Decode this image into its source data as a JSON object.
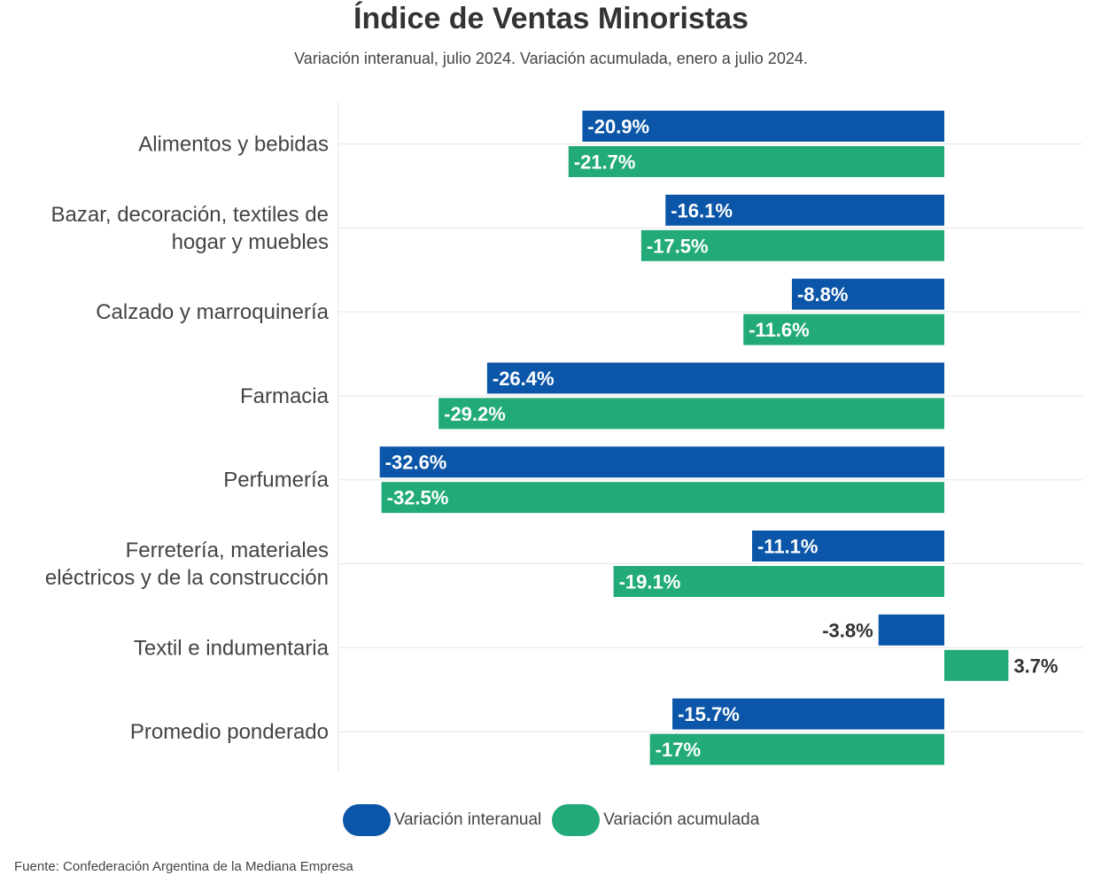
{
  "chart_data": {
    "type": "bar",
    "orientation": "horizontal",
    "title": "Índice de Ventas Minoristas",
    "subtitle": "Variación interanual, julio 2024. Variación acumulada, enero a julio 2024.",
    "categories": [
      "Alimentos y bebidas",
      "Bazar, decoración, textiles de hogar y muebles",
      "Calzado y marroquinería",
      "Farmacia",
      "Perfumería",
      "Ferretería, materiales eléctricos y de la construcción",
      "Textil e indumentaria",
      "Promedio ponderado"
    ],
    "category_lines": [
      [
        "Alimentos y bebidas"
      ],
      [
        "Bazar, decoración, textiles de",
        "hogar y muebles"
      ],
      [
        "Calzado y marroquinería"
      ],
      [
        "Farmacia"
      ],
      [
        "Perfumería"
      ],
      [
        "Ferretería, materiales",
        "eléctricos y de la construcción"
      ],
      [
        "Textil e indumentaria"
      ],
      [
        "Promedio ponderado"
      ]
    ],
    "series": [
      {
        "name": "Variación interanual",
        "color": "#0b56a8",
        "values": [
          -20.9,
          -16.1,
          -8.8,
          -26.4,
          -32.6,
          -11.1,
          -3.8,
          -15.7
        ],
        "labels": [
          "-20.9%",
          "-16.1%",
          "-8.8%",
          "-26.4%",
          "-32.6%",
          "-11.1%",
          "-3.8%",
          "-15.7%"
        ]
      },
      {
        "name": "Variación acumulada",
        "color": "#22ab78",
        "values": [
          -21.7,
          -17.5,
          -11.6,
          -29.2,
          -32.5,
          -19.1,
          3.7,
          -17.0
        ],
        "labels": [
          "-21.7%",
          "-17.5%",
          "-11.6%",
          "-29.2%",
          "-32.5%",
          "-19.1%",
          "3.7%",
          "-17%"
        ]
      }
    ],
    "xlim": [
      -35,
      8
    ],
    "grid": true,
    "legend_position": "bottom"
  },
  "source": "Fuente: Confederación Argentina de la Mediana Empresa"
}
